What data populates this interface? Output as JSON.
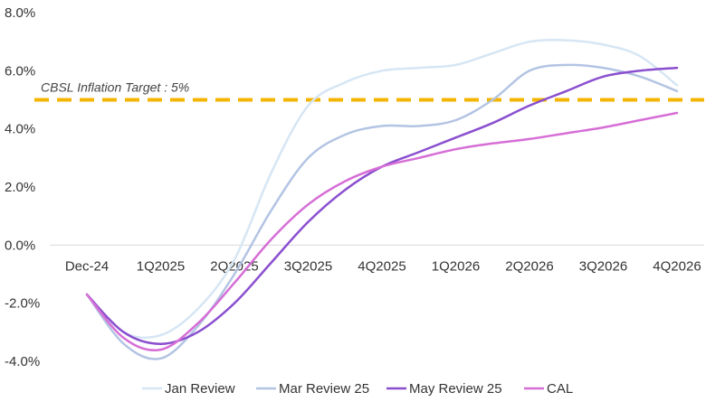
{
  "chart_data": {
    "type": "line",
    "title": "",
    "xlabel": "",
    "ylabel": "",
    "categories": [
      "Dec-24",
      "1Q2025",
      "2Q2025",
      "3Q2025",
      "4Q2025",
      "1Q2026",
      "2Q2026",
      "3Q2026",
      "4Q2026"
    ],
    "y_ticks": [
      "8.0%",
      "6.0%",
      "4.0%",
      "2.0%",
      "0.0%",
      "-2.0%",
      "-4.0%"
    ],
    "ylim": [
      -4.0,
      8.0
    ],
    "reference_line": {
      "label": "CBSL Inflation Target : 5%",
      "value": 5.0,
      "color": "#f4b400"
    },
    "series": [
      {
        "name": "Jan Review",
        "color": "#d6e6f4",
        "points": [
          [
            0,
            -1.7
          ],
          [
            0.5,
            -3.0
          ],
          [
            1,
            -3.1
          ],
          [
            1.5,
            -2.2
          ],
          [
            2,
            -0.5
          ],
          [
            2.5,
            2.5
          ],
          [
            3,
            4.8
          ],
          [
            3.5,
            5.6
          ],
          [
            4,
            6.0
          ],
          [
            4.5,
            6.1
          ],
          [
            5,
            6.2
          ],
          [
            5.5,
            6.6
          ],
          [
            6,
            7.0
          ],
          [
            6.5,
            7.05
          ],
          [
            7,
            6.9
          ],
          [
            7.5,
            6.5
          ],
          [
            8,
            5.5
          ]
        ]
      },
      {
        "name": "Mar Review 25",
        "color": "#b3c4e3",
        "points": [
          [
            0,
            -1.7
          ],
          [
            0.5,
            -3.4
          ],
          [
            1,
            -3.9
          ],
          [
            1.5,
            -2.8
          ],
          [
            2,
            -1.0
          ],
          [
            2.5,
            1.2
          ],
          [
            3,
            3.0
          ],
          [
            3.5,
            3.8
          ],
          [
            4,
            4.1
          ],
          [
            4.5,
            4.1
          ],
          [
            5,
            4.3
          ],
          [
            5.5,
            5.0
          ],
          [
            6,
            6.0
          ],
          [
            6.5,
            6.2
          ],
          [
            7,
            6.1
          ],
          [
            7.5,
            5.8
          ],
          [
            8,
            5.3
          ]
        ]
      },
      {
        "name": "May Review 25",
        "color": "#8a4fcf",
        "points": [
          [
            0,
            -1.7
          ],
          [
            0.5,
            -3.0
          ],
          [
            1,
            -3.4
          ],
          [
            1.5,
            -3.0
          ],
          [
            2,
            -2.0
          ],
          [
            2.5,
            -0.6
          ],
          [
            3,
            0.8
          ],
          [
            3.5,
            1.9
          ],
          [
            4,
            2.7
          ],
          [
            4.5,
            3.2
          ],
          [
            5,
            3.7
          ],
          [
            5.5,
            4.2
          ],
          [
            6,
            4.8
          ],
          [
            6.5,
            5.3
          ],
          [
            7,
            5.8
          ],
          [
            7.5,
            6.0
          ],
          [
            8,
            6.1
          ]
        ]
      },
      {
        "name": "CAL",
        "color": "#d66ed6",
        "points": [
          [
            0,
            -1.7
          ],
          [
            0.5,
            -3.2
          ],
          [
            1,
            -3.6
          ],
          [
            1.5,
            -2.7
          ],
          [
            2,
            -1.3
          ],
          [
            2.5,
            0.2
          ],
          [
            3,
            1.4
          ],
          [
            3.5,
            2.2
          ],
          [
            4,
            2.7
          ],
          [
            4.5,
            3.0
          ],
          [
            5,
            3.3
          ],
          [
            5.5,
            3.5
          ],
          [
            6,
            3.65
          ],
          [
            6.5,
            3.85
          ],
          [
            7,
            4.05
          ],
          [
            7.5,
            4.3
          ],
          [
            8,
            4.55
          ]
        ]
      }
    ]
  }
}
